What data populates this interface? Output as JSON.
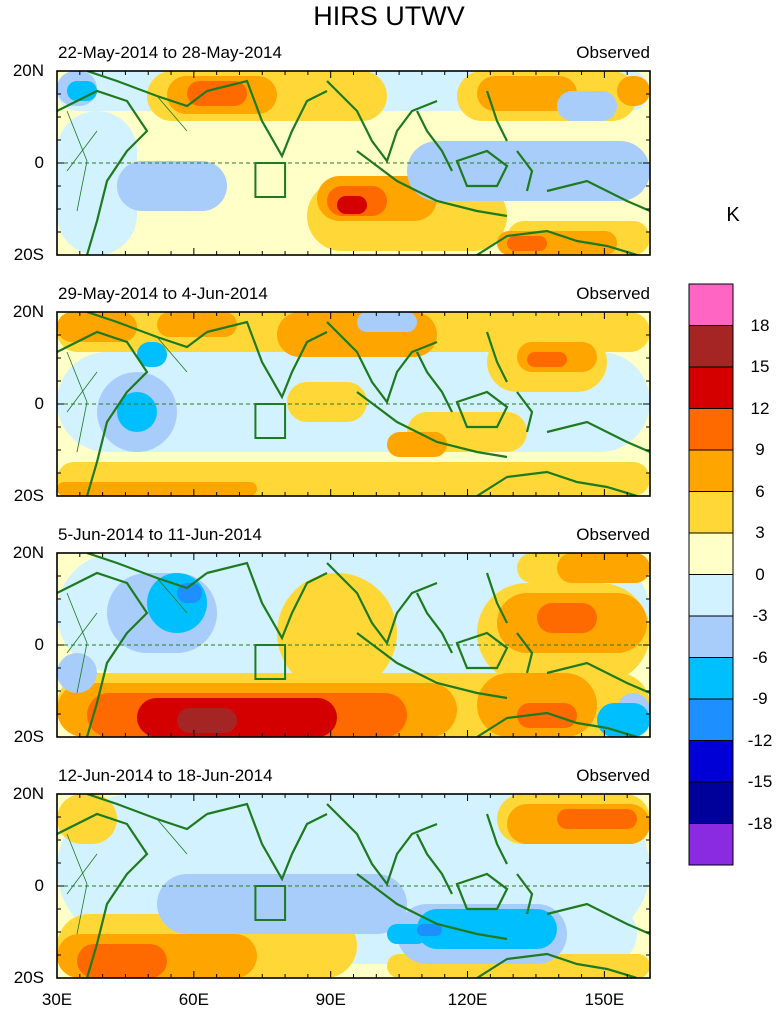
{
  "figure": {
    "title": "HIRS UTWV",
    "unit": "K",
    "panels": [
      {
        "date_range": "22-May-2014 to 28-May-2014",
        "label": "Observed"
      },
      {
        "date_range": "29-May-2014 to 4-Jun-2014",
        "label": "Observed"
      },
      {
        "date_range": "5-Jun-2014 to 11-Jun-2014",
        "label": "Observed"
      },
      {
        "date_range": "12-Jun-2014 to 18-Jun-2014",
        "label": "Observed"
      }
    ],
    "lat_labels": [
      "20N",
      "0",
      "20S"
    ],
    "lon_labels": [
      "30E",
      "60E",
      "90E",
      "120E",
      "150E"
    ],
    "colorbar": {
      "levels": [
        "18",
        "15",
        "12",
        "9",
        "6",
        "3",
        "0",
        "-3",
        "-6",
        "-9",
        "-12",
        "-15",
        "-18"
      ],
      "colors": [
        "#ff66c4",
        "#a52424",
        "#d40000",
        "#ff6a00",
        "#ffa500",
        "#ffd837",
        "#ffffc8",
        "#d2f2ff",
        "#a8cdfa",
        "#00bfff",
        "#1e8fff",
        "#0000d6",
        "#00009b",
        "#8a2be2"
      ]
    }
  }
}
